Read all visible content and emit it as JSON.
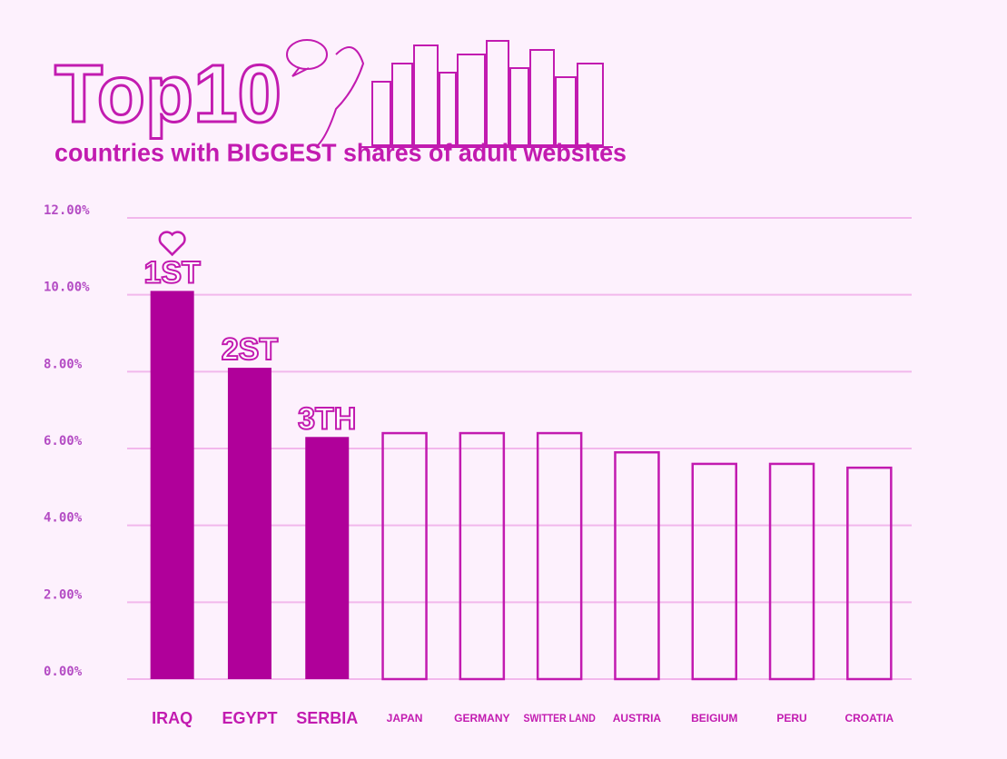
{
  "chart_data": {
    "type": "bar",
    "title": "Top10",
    "subtitle": "countries with BIGGEST shares of adult websites",
    "categories": [
      "IRAQ",
      "EGYPT",
      "SERBIA",
      "JAPAN",
      "GERMANY",
      "SWITTER LAND",
      "AUSTRIA",
      "BEIGIUM",
      "PERU",
      "CROATIA"
    ],
    "values": [
      10.1,
      8.1,
      6.3,
      6.4,
      6.4,
      6.4,
      5.9,
      5.6,
      5.6,
      5.5
    ],
    "annotations": [
      "1ST",
      "2ST",
      "3TH"
    ],
    "color": "#c21bb0",
    "fills": [
      "#b0009a",
      "#b0009a",
      "#b0009a",
      "none",
      "none",
      "none",
      "none",
      "none",
      "none",
      "none"
    ],
    "ylim": [
      0,
      12
    ],
    "yticks": [
      {
        "value": 0,
        "label": "0.00%"
      },
      {
        "value": 2,
        "label": "2.00%"
      },
      {
        "value": 4,
        "label": "4.00%"
      },
      {
        "value": 6,
        "label": "6.00%"
      },
      {
        "value": 8,
        "label": "8.00%"
      },
      {
        "value": 10,
        "label": "10.00%"
      },
      {
        "value": 12,
        "label": "12.00%"
      }
    ],
    "grid": true
  }
}
